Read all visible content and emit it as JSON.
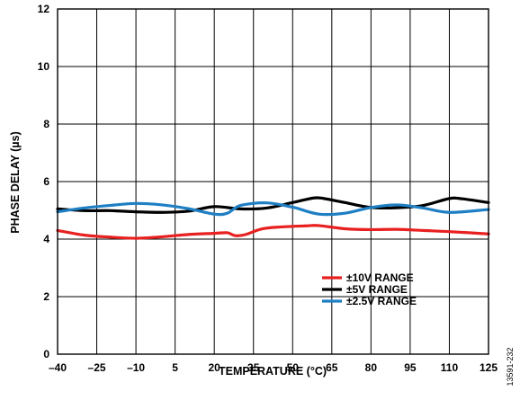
{
  "chart_data": {
    "type": "line",
    "title": "",
    "xlabel": "TEMPERATURE (°C)",
    "ylabel": "PHASE DELAY (µs)",
    "xlim": [
      -40,
      125
    ],
    "ylim": [
      0,
      12
    ],
    "x_ticks": [
      -40,
      -25,
      -10,
      5,
      20,
      35,
      50,
      65,
      80,
      95,
      110,
      125
    ],
    "x_tick_labels": [
      "–40",
      "–25",
      "–10",
      "5",
      "20",
      "35",
      "50",
      "65",
      "80",
      "95",
      "110",
      "125"
    ],
    "y_ticks": [
      0,
      2,
      4,
      6,
      8,
      10,
      12
    ],
    "y_tick_labels": [
      "0",
      "2",
      "4",
      "6",
      "8",
      "10",
      "12"
    ],
    "grid": true,
    "legend_position": "bottom-right",
    "series": [
      {
        "name": "±10V RANGE",
        "color": "#e8201f",
        "points": [
          [
            -40,
            4.3
          ],
          [
            -30,
            4.14
          ],
          [
            -20,
            4.07
          ],
          [
            -10,
            4.03
          ],
          [
            0,
            4.08
          ],
          [
            10,
            4.16
          ],
          [
            20,
            4.2
          ],
          [
            25,
            4.22
          ],
          [
            28,
            4.12
          ],
          [
            32,
            4.16
          ],
          [
            38,
            4.35
          ],
          [
            45,
            4.42
          ],
          [
            55,
            4.46
          ],
          [
            60,
            4.47
          ],
          [
            70,
            4.36
          ],
          [
            80,
            4.33
          ],
          [
            90,
            4.34
          ],
          [
            100,
            4.3
          ],
          [
            110,
            4.26
          ],
          [
            125,
            4.18
          ]
        ]
      },
      {
        "name": "±5V RANGE",
        "color": "#000000",
        "points": [
          [
            -40,
            5.05
          ],
          [
            -30,
            4.99
          ],
          [
            -20,
            4.99
          ],
          [
            -10,
            4.95
          ],
          [
            0,
            4.93
          ],
          [
            10,
            4.97
          ],
          [
            20,
            5.13
          ],
          [
            30,
            5.05
          ],
          [
            40,
            5.08
          ],
          [
            50,
            5.27
          ],
          [
            58,
            5.43
          ],
          [
            62,
            5.41
          ],
          [
            70,
            5.27
          ],
          [
            80,
            5.1
          ],
          [
            90,
            5.09
          ],
          [
            100,
            5.17
          ],
          [
            110,
            5.41
          ],
          [
            115,
            5.4
          ],
          [
            125,
            5.27
          ]
        ]
      },
      {
        "name": "±2.5V RANGE",
        "color": "#1f7fc4",
        "points": [
          [
            -40,
            4.95
          ],
          [
            -30,
            5.08
          ],
          [
            -20,
            5.17
          ],
          [
            -10,
            5.24
          ],
          [
            0,
            5.19
          ],
          [
            10,
            5.06
          ],
          [
            20,
            4.87
          ],
          [
            25,
            4.9
          ],
          [
            30,
            5.17
          ],
          [
            40,
            5.26
          ],
          [
            50,
            5.11
          ],
          [
            60,
            4.87
          ],
          [
            70,
            4.9
          ],
          [
            80,
            5.1
          ],
          [
            90,
            5.19
          ],
          [
            100,
            5.08
          ],
          [
            110,
            4.93
          ],
          [
            125,
            5.03
          ]
        ]
      }
    ]
  },
  "figure_id": "13591-232"
}
